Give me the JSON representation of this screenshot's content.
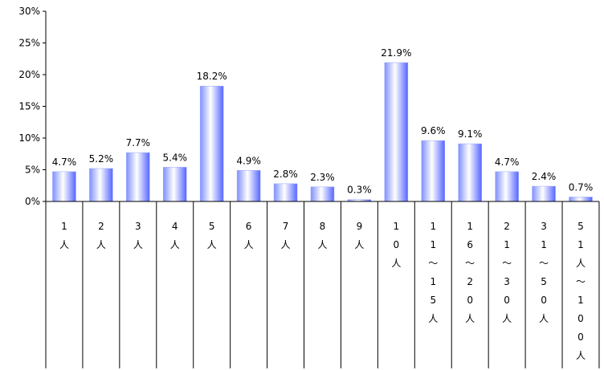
{
  "chart_data": {
    "type": "bar",
    "categories": [
      "1人",
      "2人",
      "3人",
      "4人",
      "5人",
      "6人",
      "7人",
      "8人",
      "9人",
      "10人",
      "11〜15人",
      "16〜20人",
      "21〜30人",
      "31〜50人",
      "51人〜100人"
    ],
    "category_label_chars": [
      [
        "1",
        "人"
      ],
      [
        "2",
        "人"
      ],
      [
        "3",
        "人"
      ],
      [
        "4",
        "人"
      ],
      [
        "5",
        "人"
      ],
      [
        "6",
        "人"
      ],
      [
        "7",
        "人"
      ],
      [
        "8",
        "人"
      ],
      [
        "9",
        "人"
      ],
      [
        "1",
        "0",
        "人"
      ],
      [
        "1",
        "1",
        "〜",
        "1",
        "5",
        "人"
      ],
      [
        "1",
        "6",
        "〜",
        "2",
        "0",
        "人"
      ],
      [
        "2",
        "1",
        "〜",
        "3",
        "0",
        "人"
      ],
      [
        "3",
        "1",
        "〜",
        "5",
        "0",
        "人"
      ],
      [
        "5",
        "1",
        "人",
        "〜",
        "1",
        "0",
        "0",
        "人"
      ]
    ],
    "values": [
      4.7,
      5.2,
      7.7,
      5.4,
      18.2,
      4.9,
      2.8,
      2.3,
      0.3,
      21.9,
      9.6,
      9.1,
      4.7,
      2.4,
      0.7
    ],
    "data_labels": [
      "4.7%",
      "5.2%",
      "7.7%",
      "5.4%",
      "18.2%",
      "4.9%",
      "2.8%",
      "2.3%",
      "0.3%",
      "21.9%",
      "9.6%",
      "9.1%",
      "4.7%",
      "2.4%",
      "0.7%"
    ],
    "yticks": [
      "0%",
      "5%",
      "10%",
      "15%",
      "20%",
      "25%",
      "30%"
    ],
    "ylim": [
      0,
      30
    ],
    "title": "",
    "xlabel": "",
    "ylabel": "",
    "grid": false,
    "legend": "none",
    "colors": {
      "bar_edge": "#9aa8ff",
      "bar_mid": "#ffffff",
      "bar_dark": "#5566ff",
      "axis": "#000000"
    }
  }
}
